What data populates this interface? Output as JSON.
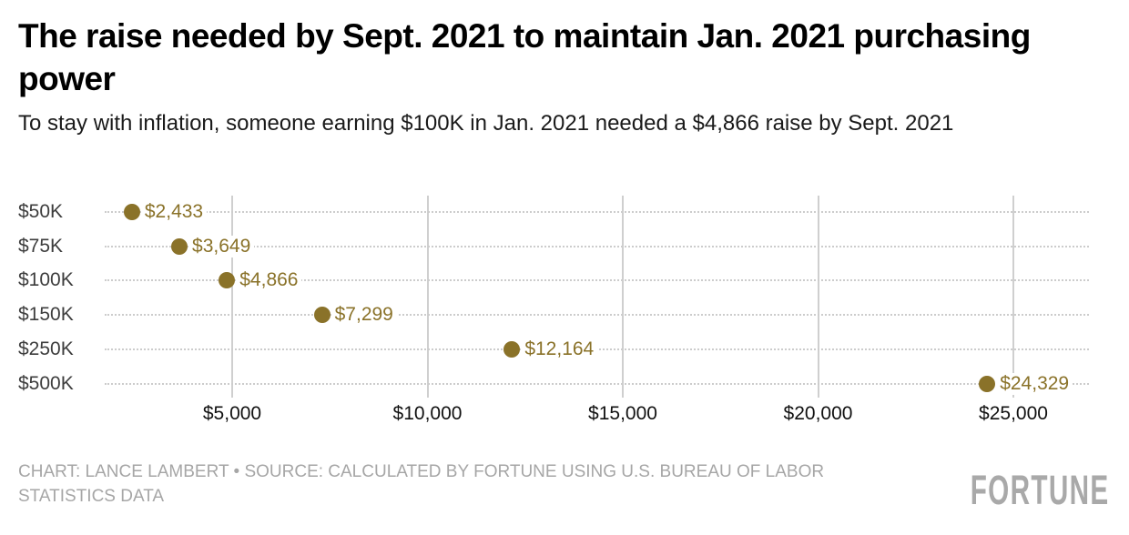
{
  "header": {
    "title": "The raise needed by Sept. 2021 to maintain Jan. 2021 purchasing power",
    "subtitle": "To stay with inflation, someone earning $100K in Jan. 2021 needed a $4,866 raise by Sept. 2021"
  },
  "chart_data": {
    "type": "scatter",
    "variant": "dot-plot",
    "title": "The raise needed by Sept. 2021 to maintain Jan. 2021 purchasing power",
    "subtitle": "To stay with inflation, someone earning $100K in Jan. 2021 needed a $4,866 raise by Sept. 2021",
    "categories": [
      "$50K",
      "$75K",
      "$100K",
      "$150K",
      "$250K",
      "$500K"
    ],
    "values": [
      2433,
      3649,
      4866,
      7299,
      12164,
      24329
    ],
    "value_labels": [
      "$2,433",
      "$3,649",
      "$4,866",
      "$7,299",
      "$12,164",
      "$24,329"
    ],
    "x_ticks": [
      5000,
      10000,
      15000,
      20000,
      25000
    ],
    "x_tick_labels": [
      "$5,000",
      "$10,000",
      "$15,000",
      "$20,000",
      "$25,000"
    ],
    "xlim": [
      0,
      26930
    ],
    "xlabel": "",
    "ylabel": "",
    "legend": "none",
    "grid": "vertical-solid, horizontal-dotted"
  },
  "colors": {
    "accent_gold": "#8a7229",
    "grid_solid": "#cfcfcf",
    "grid_dotted": "#cccccc",
    "y_label": "#3d3d3d",
    "x_label": "#111111",
    "footer_gray": "#a6a6a6",
    "logo_gray": "#a9a9a9"
  },
  "footer": {
    "credit": "CHART: LANCE LAMBERT • SOURCE: CALCULATED BY FORTUNE USING U.S. BUREAU OF LABOR STATISTICS DATA",
    "brand": "FORTUNE"
  }
}
